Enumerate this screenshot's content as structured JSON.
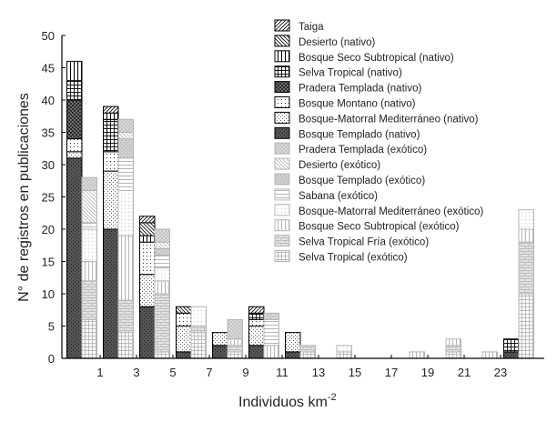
{
  "chart_data": {
    "type": "bar",
    "stacked": true,
    "title": "",
    "xlabel": "Individuos km",
    "xlabel_superscript": "-2",
    "ylabel": "N° de registros en publicaciones",
    "ylim": [
      0,
      50
    ],
    "yticks": [
      0,
      5,
      10,
      15,
      20,
      25,
      30,
      35,
      40,
      45,
      50
    ],
    "xlim": [
      -1.1,
      25.4
    ],
    "xticks": [
      1,
      3,
      5,
      7,
      9,
      11,
      13,
      15,
      17,
      19,
      21,
      23
    ],
    "x": [
      0,
      2,
      4,
      6,
      8,
      10,
      12,
      14,
      16,
      18,
      20,
      22,
      24
    ],
    "grid": false,
    "legend_position": "top-right",
    "series": [
      {
        "name": "Taiga",
        "group": "native",
        "pattern": "diag-up",
        "values": [
          0,
          1,
          1,
          0,
          0,
          1,
          0,
          0,
          0,
          0,
          0,
          0,
          0
        ]
      },
      {
        "name": "Desierto (nativo)",
        "group": "native",
        "pattern": "diag-down",
        "values": [
          0,
          0,
          2,
          1,
          0,
          0,
          0,
          0,
          0,
          0,
          0,
          0,
          0
        ]
      },
      {
        "name": "Bosque Seco Subtropical (nativo)",
        "group": "native",
        "pattern": "vertical",
        "values": [
          3,
          1,
          1,
          0,
          0,
          0,
          0,
          0,
          0,
          0,
          0,
          0,
          0
        ]
      },
      {
        "name": "Selva Tropical (nativo)",
        "group": "native",
        "pattern": "grid",
        "values": [
          3,
          5,
          0,
          0,
          0,
          1,
          0,
          0,
          0,
          0,
          0,
          0,
          2
        ]
      },
      {
        "name": "Pradera Templada (nativo)",
        "group": "native",
        "pattern": "crosshatch",
        "values": [
          6,
          0,
          0,
          0,
          0,
          0,
          0,
          0,
          0,
          0,
          0,
          0,
          0
        ]
      },
      {
        "name": "Bosque Montano (nativo)",
        "group": "native",
        "pattern": "dots-sparse",
        "values": [
          2,
          3,
          5,
          2,
          0,
          1,
          0,
          0,
          0,
          0,
          0,
          0,
          0
        ]
      },
      {
        "name": "Bosque-Matorral Mediterráneo (nativo)",
        "group": "native",
        "pattern": "dots-dense",
        "values": [
          1,
          9,
          5,
          4,
          2,
          3,
          3,
          0,
          0,
          0,
          0,
          0,
          0
        ]
      },
      {
        "name": "Bosque Templado (nativo)",
        "group": "native",
        "pattern": "dark",
        "values": [
          31,
          20,
          8,
          1,
          2,
          2,
          1,
          0,
          0,
          0,
          0,
          0,
          1
        ]
      },
      {
        "name": "Pradera Templada (exótico)",
        "group": "exotic",
        "pattern": "crosshatch",
        "values": [
          2,
          2,
          2,
          0,
          3,
          1,
          0,
          0,
          0,
          0,
          0,
          0,
          0
        ]
      },
      {
        "name": "Desierto (exótico)",
        "group": "exotic",
        "pattern": "diag-down",
        "values": [
          5,
          1,
          1,
          0,
          0,
          0,
          0,
          0,
          0,
          0,
          0,
          0,
          0
        ]
      },
      {
        "name": "Bosque Templado (exótico)",
        "group": "exotic",
        "pattern": "dark",
        "values": [
          0,
          3,
          1,
          0,
          0,
          0,
          0,
          0,
          0,
          0,
          0,
          0,
          0
        ]
      },
      {
        "name": "Sabana (exótico)",
        "group": "exotic",
        "pattern": "horizontal",
        "values": [
          1,
          5,
          2,
          0,
          0,
          4,
          0,
          0,
          0,
          0,
          0,
          0,
          0
        ]
      },
      {
        "name": "Bosque-Matorral Mediterráneo (exótico)",
        "group": "exotic",
        "pattern": "dots-sparse",
        "values": [
          5,
          7,
          2,
          3,
          0,
          0,
          0,
          1,
          0,
          0,
          0,
          0,
          3
        ]
      },
      {
        "name": "Bosque Seco Subtropical (exótico)",
        "group": "exotic",
        "pattern": "vertical",
        "values": [
          3,
          10,
          2,
          0,
          1,
          2,
          0,
          0,
          0,
          1,
          1,
          1,
          2
        ]
      },
      {
        "name": "Selva Tropical Fría (exótico)",
        "group": "exotic",
        "pattern": "brick",
        "values": [
          6,
          5,
          9,
          1,
          1,
          0,
          1,
          0,
          0,
          0,
          1,
          0,
          8
        ]
      },
      {
        "name": "Selva Tropical (exótico)",
        "group": "exotic",
        "pattern": "grid",
        "values": [
          6,
          4,
          1,
          4,
          1,
          0,
          1,
          1,
          0,
          0,
          1,
          0,
          10
        ]
      }
    ],
    "colors": {
      "native": "#000000",
      "exotic": "#b5b5b5",
      "native_dark_fill": "#555555",
      "exotic_dark_fill": "#d0d0d0"
    }
  }
}
